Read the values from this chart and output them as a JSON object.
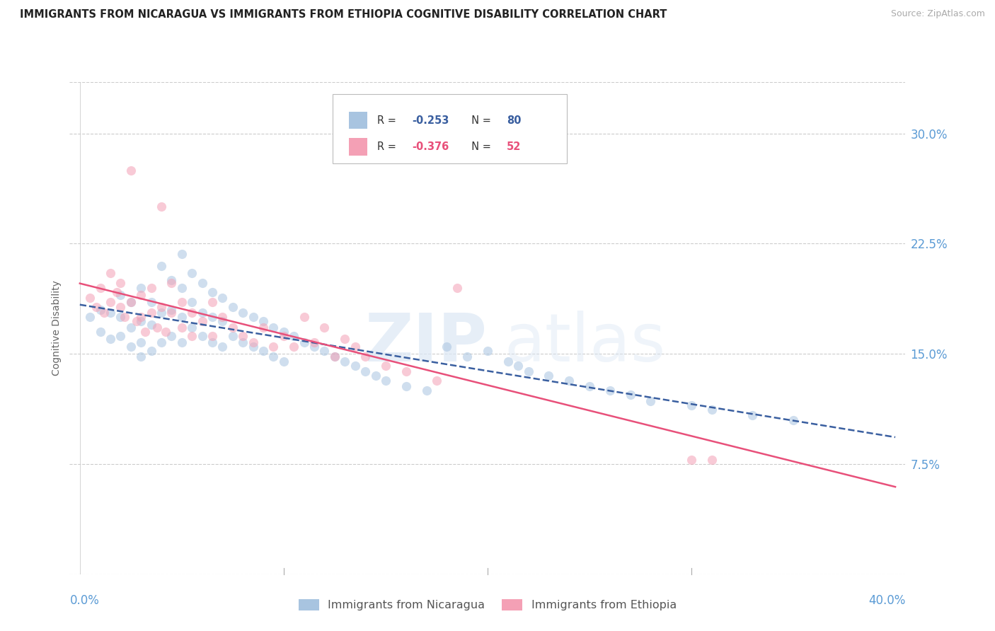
{
  "title": "IMMIGRANTS FROM NICARAGUA VS IMMIGRANTS FROM ETHIOPIA COGNITIVE DISABILITY CORRELATION CHART",
  "source": "Source: ZipAtlas.com",
  "ylabel": "Cognitive Disability",
  "ytick_labels": [
    "7.5%",
    "15.0%",
    "22.5%",
    "30.0%"
  ],
  "ytick_values": [
    0.075,
    0.15,
    0.225,
    0.3
  ],
  "xtick_values": [
    0.0,
    0.1,
    0.2,
    0.3,
    0.4
  ],
  "xlim": [
    -0.005,
    0.405
  ],
  "ylim": [
    0.0,
    0.335
  ],
  "color_nicaragua": "#a8c4e0",
  "color_ethiopia": "#f4a0b5",
  "color_nicaragua_line": "#3a5fa0",
  "color_ethiopia_line": "#e8507a",
  "color_axis_labels": "#5b9bd5",
  "background_color": "#ffffff",
  "title_fontsize": 10.5,
  "source_fontsize": 9,
  "scatter_alpha": 0.55,
  "scatter_size": 90,
  "nicaragua_x": [
    0.005,
    0.01,
    0.01,
    0.015,
    0.015,
    0.02,
    0.02,
    0.02,
    0.025,
    0.025,
    0.025,
    0.03,
    0.03,
    0.03,
    0.03,
    0.035,
    0.035,
    0.035,
    0.04,
    0.04,
    0.04,
    0.045,
    0.045,
    0.045,
    0.05,
    0.05,
    0.05,
    0.05,
    0.055,
    0.055,
    0.055,
    0.06,
    0.06,
    0.06,
    0.065,
    0.065,
    0.065,
    0.07,
    0.07,
    0.07,
    0.075,
    0.075,
    0.08,
    0.08,
    0.085,
    0.085,
    0.09,
    0.09,
    0.095,
    0.095,
    0.1,
    0.1,
    0.105,
    0.11,
    0.115,
    0.12,
    0.125,
    0.13,
    0.135,
    0.14,
    0.145,
    0.15,
    0.16,
    0.17,
    0.18,
    0.19,
    0.2,
    0.21,
    0.215,
    0.22,
    0.23,
    0.24,
    0.25,
    0.26,
    0.27,
    0.28,
    0.3,
    0.31,
    0.33,
    0.35
  ],
  "nicaragua_y": [
    0.175,
    0.18,
    0.165,
    0.178,
    0.16,
    0.19,
    0.175,
    0.162,
    0.185,
    0.168,
    0.155,
    0.195,
    0.172,
    0.158,
    0.148,
    0.185,
    0.17,
    0.152,
    0.21,
    0.178,
    0.158,
    0.2,
    0.18,
    0.162,
    0.218,
    0.195,
    0.175,
    0.158,
    0.205,
    0.185,
    0.168,
    0.198,
    0.178,
    0.162,
    0.192,
    0.175,
    0.158,
    0.188,
    0.172,
    0.155,
    0.182,
    0.162,
    0.178,
    0.158,
    0.175,
    0.155,
    0.172,
    0.152,
    0.168,
    0.148,
    0.165,
    0.145,
    0.162,
    0.158,
    0.155,
    0.152,
    0.148,
    0.145,
    0.142,
    0.138,
    0.135,
    0.132,
    0.128,
    0.125,
    0.155,
    0.148,
    0.152,
    0.145,
    0.142,
    0.138,
    0.135,
    0.132,
    0.128,
    0.125,
    0.122,
    0.118,
    0.115,
    0.112,
    0.108,
    0.105
  ],
  "ethiopia_x": [
    0.005,
    0.008,
    0.01,
    0.012,
    0.015,
    0.015,
    0.018,
    0.02,
    0.02,
    0.022,
    0.025,
    0.025,
    0.028,
    0.03,
    0.03,
    0.032,
    0.035,
    0.035,
    0.038,
    0.04,
    0.04,
    0.042,
    0.045,
    0.045,
    0.05,
    0.05,
    0.055,
    0.055,
    0.06,
    0.065,
    0.065,
    0.07,
    0.075,
    0.08,
    0.085,
    0.09,
    0.095,
    0.1,
    0.105,
    0.11,
    0.115,
    0.12,
    0.125,
    0.13,
    0.135,
    0.14,
    0.15,
    0.16,
    0.175,
    0.185,
    0.3,
    0.31
  ],
  "ethiopia_y": [
    0.188,
    0.182,
    0.195,
    0.178,
    0.205,
    0.185,
    0.192,
    0.182,
    0.198,
    0.175,
    0.275,
    0.185,
    0.172,
    0.19,
    0.175,
    0.165,
    0.195,
    0.178,
    0.168,
    0.25,
    0.182,
    0.165,
    0.198,
    0.178,
    0.185,
    0.168,
    0.178,
    0.162,
    0.172,
    0.185,
    0.162,
    0.175,
    0.168,
    0.162,
    0.158,
    0.168,
    0.155,
    0.162,
    0.155,
    0.175,
    0.158,
    0.168,
    0.148,
    0.16,
    0.155,
    0.148,
    0.142,
    0.138,
    0.132,
    0.195,
    0.078,
    0.078
  ]
}
